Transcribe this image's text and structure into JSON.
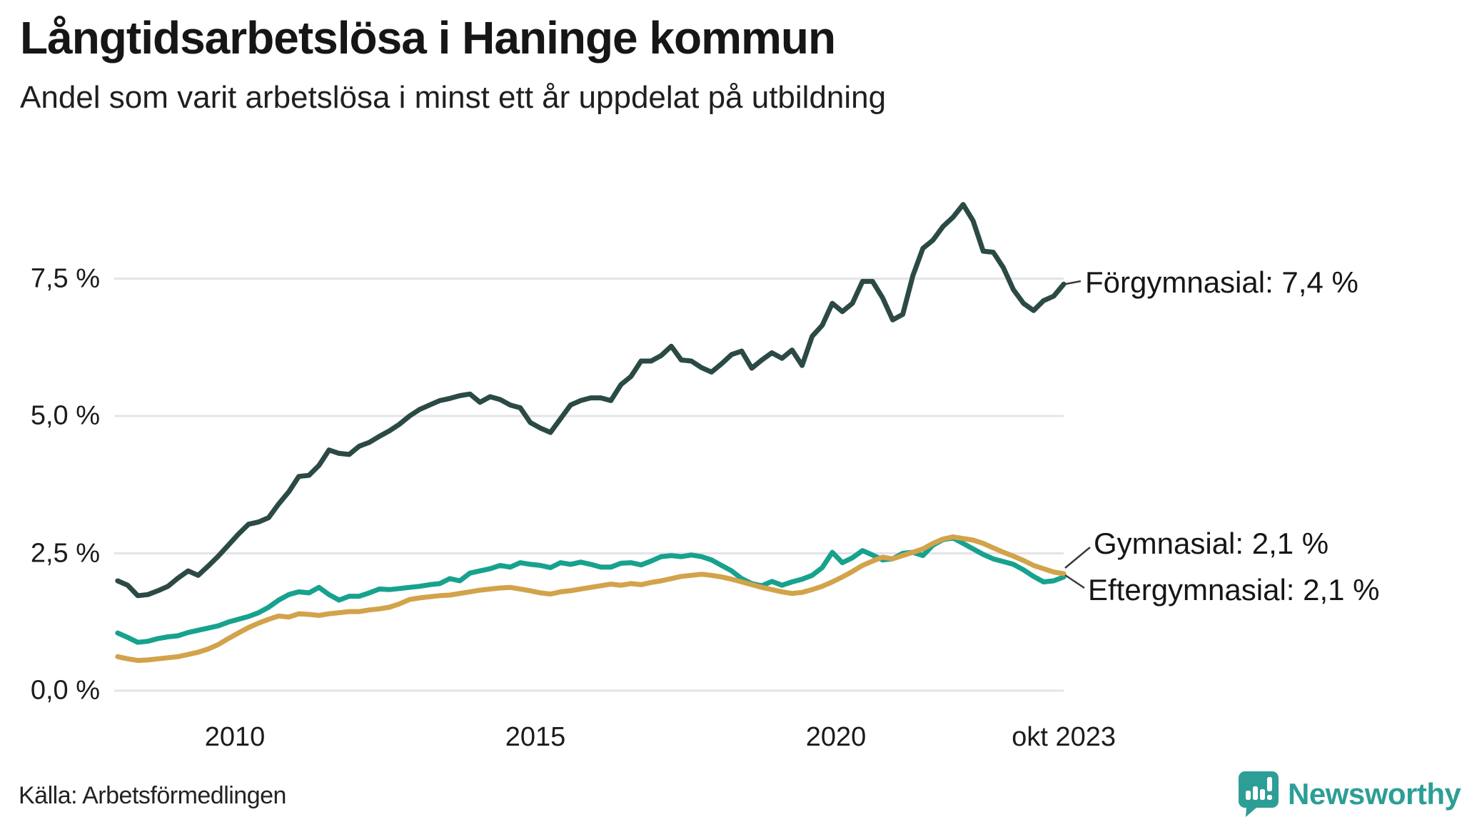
{
  "header": {
    "title": "Långtidsarbetslösa i Haninge kommun",
    "subtitle": "Andel som varit arbetslösa i minst ett år uppdelat på utbildning"
  },
  "footer": {
    "source": "Källa: Arbetsförmedlingen",
    "brand": "Newsworthy",
    "brand_color": "#2d9e96"
  },
  "chart_data": {
    "type": "line",
    "title": "Långtidsarbetslösa i Haninge kommun",
    "subtitle": "Andel som varit arbetslösa i minst ett år uppdelat på utbildning",
    "xlabel": "",
    "ylabel": "",
    "grid": true,
    "xlim": [
      2008.05,
      2023.79
    ],
    "ylim": [
      0,
      9.3
    ],
    "x_start": 2008.05,
    "x_step": 0.16745,
    "x_ticks": [
      {
        "x": 2010,
        "label": "2010"
      },
      {
        "x": 2015,
        "label": "2015"
      },
      {
        "x": 2020,
        "label": "2020"
      },
      {
        "x": 2023.79,
        "label": "okt 2023"
      }
    ],
    "y_ticks": [
      {
        "y": 7.5,
        "label": "7,5 %"
      },
      {
        "y": 5.0,
        "label": "5,0 %"
      },
      {
        "y": 2.5,
        "label": "2,5 %"
      },
      {
        "y": 0.0,
        "label": "0,0 %"
      }
    ],
    "series": [
      {
        "name": "Förgymnasial",
        "label": "Förgymnasial: 7,4 %",
        "end_value": "7,4 %",
        "color": "#2c4a45",
        "values": [
          2.0,
          1.92,
          1.73,
          1.75,
          1.82,
          1.9,
          2.05,
          2.18,
          2.1,
          2.27,
          2.45,
          2.65,
          2.85,
          3.03,
          3.07,
          3.15,
          3.4,
          3.62,
          3.9,
          3.92,
          4.1,
          4.38,
          4.32,
          4.3,
          4.45,
          4.52,
          4.63,
          4.73,
          4.85,
          5.0,
          5.12,
          5.2,
          5.28,
          5.32,
          5.37,
          5.4,
          5.25,
          5.35,
          5.3,
          5.2,
          5.15,
          4.88,
          4.78,
          4.7,
          4.95,
          5.2,
          5.28,
          5.33,
          5.33,
          5.28,
          5.57,
          5.72,
          6.0,
          6.0,
          6.1,
          6.27,
          6.02,
          6.0,
          5.88,
          5.8,
          5.95,
          6.12,
          6.18,
          5.87,
          6.02,
          6.15,
          6.05,
          6.2,
          5.92,
          6.45,
          6.65,
          7.05,
          6.9,
          7.05,
          7.45,
          7.45,
          7.15,
          6.75,
          6.85,
          7.55,
          8.05,
          8.2,
          8.45,
          8.62,
          8.85,
          8.55,
          8.0,
          7.98,
          7.7,
          7.3,
          7.05,
          6.92,
          7.1,
          7.18,
          7.4
        ]
      },
      {
        "name": "Gymnasial",
        "label": "Gymnasial: 2,1 %",
        "end_value": "2,1 %",
        "color": "#17a28e",
        "values": [
          1.05,
          0.97,
          0.88,
          0.9,
          0.95,
          0.98,
          1.0,
          1.06,
          1.1,
          1.14,
          1.18,
          1.25,
          1.3,
          1.35,
          1.42,
          1.52,
          1.65,
          1.75,
          1.8,
          1.78,
          1.88,
          1.75,
          1.65,
          1.72,
          1.72,
          1.78,
          1.85,
          1.84,
          1.86,
          1.88,
          1.9,
          1.93,
          1.95,
          2.04,
          2.0,
          2.14,
          2.18,
          2.22,
          2.28,
          2.25,
          2.33,
          2.3,
          2.28,
          2.24,
          2.33,
          2.3,
          2.34,
          2.3,
          2.25,
          2.25,
          2.32,
          2.33,
          2.29,
          2.36,
          2.44,
          2.46,
          2.44,
          2.47,
          2.44,
          2.38,
          2.28,
          2.18,
          2.04,
          1.95,
          1.91,
          1.99,
          1.92,
          1.98,
          2.03,
          2.1,
          2.24,
          2.52,
          2.33,
          2.42,
          2.55,
          2.47,
          2.38,
          2.4,
          2.5,
          2.52,
          2.46,
          2.65,
          2.75,
          2.78,
          2.68,
          2.58,
          2.48,
          2.4,
          2.35,
          2.3,
          2.2,
          2.08,
          1.98,
          2.0,
          2.07
        ]
      },
      {
        "name": "Eftergymnasial",
        "label": "Eftergymnasial: 2,1 %",
        "end_value": "2,1 %",
        "color": "#d2a34b",
        "values": [
          0.62,
          0.58,
          0.55,
          0.56,
          0.58,
          0.6,
          0.62,
          0.66,
          0.7,
          0.76,
          0.84,
          0.95,
          1.05,
          1.15,
          1.23,
          1.3,
          1.36,
          1.34,
          1.4,
          1.39,
          1.37,
          1.4,
          1.42,
          1.44,
          1.44,
          1.47,
          1.49,
          1.52,
          1.58,
          1.66,
          1.69,
          1.71,
          1.73,
          1.74,
          1.77,
          1.8,
          1.83,
          1.85,
          1.87,
          1.88,
          1.85,
          1.82,
          1.78,
          1.76,
          1.8,
          1.82,
          1.85,
          1.88,
          1.91,
          1.94,
          1.92,
          1.95,
          1.93,
          1.97,
          2.0,
          2.04,
          2.08,
          2.1,
          2.12,
          2.1,
          2.07,
          2.03,
          1.98,
          1.93,
          1.88,
          1.84,
          1.8,
          1.77,
          1.79,
          1.84,
          1.9,
          1.98,
          2.07,
          2.17,
          2.28,
          2.36,
          2.43,
          2.4,
          2.46,
          2.52,
          2.58,
          2.68,
          2.76,
          2.8,
          2.77,
          2.74,
          2.68,
          2.6,
          2.52,
          2.45,
          2.37,
          2.28,
          2.22,
          2.16,
          2.13
        ]
      }
    ]
  }
}
